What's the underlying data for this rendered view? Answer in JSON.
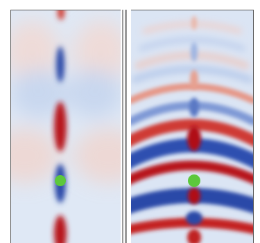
{
  "colors": {
    "background": "#d7e3f3",
    "positive": "#c01820",
    "negative": "#2a4aa8",
    "positive_faint": "#f0c8c0",
    "negative_faint": "#a8bce0",
    "marker": "#5cc83c",
    "divider": "#9a9a9a"
  },
  "panels": [
    {
      "name": "left-field-panel",
      "description_free": true
    },
    {
      "name": "right-field-panel",
      "description_free": true
    }
  ]
}
